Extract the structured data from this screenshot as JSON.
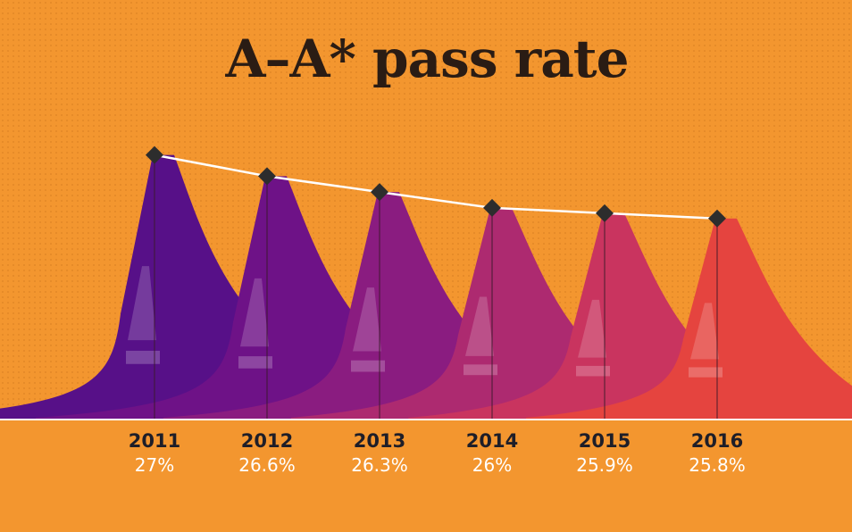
{
  "chart_data": {
    "type": "line",
    "title": "A–A* pass rate",
    "categories": [
      "2011",
      "2012",
      "2013",
      "2014",
      "2015",
      "2016"
    ],
    "values": [
      27,
      26.6,
      26.3,
      26,
      25.9,
      25.8
    ],
    "value_labels": [
      "27%",
      "26.6%",
      "26.3%",
      "26%",
      "25.9%",
      "25.8%"
    ],
    "ylim": [
      22,
      27.5
    ],
    "xlabel": "",
    "ylabel": "",
    "legend": "none",
    "glyph": "A",
    "series_colors": [
      "#571088",
      "#6e1287",
      "#8a1c80",
      "#ad2a70",
      "#c9345f",
      "#e5443f"
    ],
    "colors": {
      "background": "#f3962f",
      "line": "#ffffff",
      "marker": "#2d2d2d",
      "title": "#2a1c14"
    }
  }
}
